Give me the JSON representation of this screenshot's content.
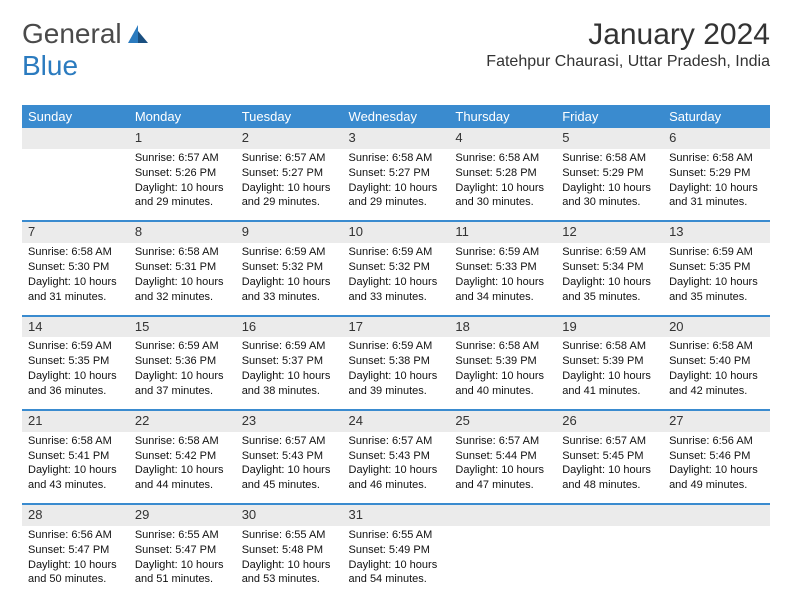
{
  "logo": {
    "text1": "General",
    "text2": "Blue"
  },
  "title": "January 2024",
  "location": "Fatehpur Chaurasi, Uttar Pradesh, India",
  "colors": {
    "header_bg": "#3a8bcf",
    "header_text": "#ffffff",
    "daynum_bg": "#ebebeb",
    "row_border": "#3a8bcf",
    "logo_gray": "#4a4a4a",
    "logo_blue": "#2b7bbf",
    "body_text": "#111111"
  },
  "typography": {
    "title_fontsize": 30,
    "location_fontsize": 16,
    "header_fontsize": 13,
    "daynum_fontsize": 13,
    "body_fontsize": 11
  },
  "weekdays": [
    "Sunday",
    "Monday",
    "Tuesday",
    "Wednesday",
    "Thursday",
    "Friday",
    "Saturday"
  ],
  "weeks": [
    [
      {
        "n": "",
        "sr": "",
        "ss": "",
        "dl": ""
      },
      {
        "n": "1",
        "sr": "6:57 AM",
        "ss": "5:26 PM",
        "dl": "10 hours and 29 minutes."
      },
      {
        "n": "2",
        "sr": "6:57 AM",
        "ss": "5:27 PM",
        "dl": "10 hours and 29 minutes."
      },
      {
        "n": "3",
        "sr": "6:58 AM",
        "ss": "5:27 PM",
        "dl": "10 hours and 29 minutes."
      },
      {
        "n": "4",
        "sr": "6:58 AM",
        "ss": "5:28 PM",
        "dl": "10 hours and 30 minutes."
      },
      {
        "n": "5",
        "sr": "6:58 AM",
        "ss": "5:29 PM",
        "dl": "10 hours and 30 minutes."
      },
      {
        "n": "6",
        "sr": "6:58 AM",
        "ss": "5:29 PM",
        "dl": "10 hours and 31 minutes."
      }
    ],
    [
      {
        "n": "7",
        "sr": "6:58 AM",
        "ss": "5:30 PM",
        "dl": "10 hours and 31 minutes."
      },
      {
        "n": "8",
        "sr": "6:58 AM",
        "ss": "5:31 PM",
        "dl": "10 hours and 32 minutes."
      },
      {
        "n": "9",
        "sr": "6:59 AM",
        "ss": "5:32 PM",
        "dl": "10 hours and 33 minutes."
      },
      {
        "n": "10",
        "sr": "6:59 AM",
        "ss": "5:32 PM",
        "dl": "10 hours and 33 minutes."
      },
      {
        "n": "11",
        "sr": "6:59 AM",
        "ss": "5:33 PM",
        "dl": "10 hours and 34 minutes."
      },
      {
        "n": "12",
        "sr": "6:59 AM",
        "ss": "5:34 PM",
        "dl": "10 hours and 35 minutes."
      },
      {
        "n": "13",
        "sr": "6:59 AM",
        "ss": "5:35 PM",
        "dl": "10 hours and 35 minutes."
      }
    ],
    [
      {
        "n": "14",
        "sr": "6:59 AM",
        "ss": "5:35 PM",
        "dl": "10 hours and 36 minutes."
      },
      {
        "n": "15",
        "sr": "6:59 AM",
        "ss": "5:36 PM",
        "dl": "10 hours and 37 minutes."
      },
      {
        "n": "16",
        "sr": "6:59 AM",
        "ss": "5:37 PM",
        "dl": "10 hours and 38 minutes."
      },
      {
        "n": "17",
        "sr": "6:59 AM",
        "ss": "5:38 PM",
        "dl": "10 hours and 39 minutes."
      },
      {
        "n": "18",
        "sr": "6:58 AM",
        "ss": "5:39 PM",
        "dl": "10 hours and 40 minutes."
      },
      {
        "n": "19",
        "sr": "6:58 AM",
        "ss": "5:39 PM",
        "dl": "10 hours and 41 minutes."
      },
      {
        "n": "20",
        "sr": "6:58 AM",
        "ss": "5:40 PM",
        "dl": "10 hours and 42 minutes."
      }
    ],
    [
      {
        "n": "21",
        "sr": "6:58 AM",
        "ss": "5:41 PM",
        "dl": "10 hours and 43 minutes."
      },
      {
        "n": "22",
        "sr": "6:58 AM",
        "ss": "5:42 PM",
        "dl": "10 hours and 44 minutes."
      },
      {
        "n": "23",
        "sr": "6:57 AM",
        "ss": "5:43 PM",
        "dl": "10 hours and 45 minutes."
      },
      {
        "n": "24",
        "sr": "6:57 AM",
        "ss": "5:43 PM",
        "dl": "10 hours and 46 minutes."
      },
      {
        "n": "25",
        "sr": "6:57 AM",
        "ss": "5:44 PM",
        "dl": "10 hours and 47 minutes."
      },
      {
        "n": "26",
        "sr": "6:57 AM",
        "ss": "5:45 PM",
        "dl": "10 hours and 48 minutes."
      },
      {
        "n": "27",
        "sr": "6:56 AM",
        "ss": "5:46 PM",
        "dl": "10 hours and 49 minutes."
      }
    ],
    [
      {
        "n": "28",
        "sr": "6:56 AM",
        "ss": "5:47 PM",
        "dl": "10 hours and 50 minutes."
      },
      {
        "n": "29",
        "sr": "6:55 AM",
        "ss": "5:47 PM",
        "dl": "10 hours and 51 minutes."
      },
      {
        "n": "30",
        "sr": "6:55 AM",
        "ss": "5:48 PM",
        "dl": "10 hours and 53 minutes."
      },
      {
        "n": "31",
        "sr": "6:55 AM",
        "ss": "5:49 PM",
        "dl": "10 hours and 54 minutes."
      },
      {
        "n": "",
        "sr": "",
        "ss": "",
        "dl": ""
      },
      {
        "n": "",
        "sr": "",
        "ss": "",
        "dl": ""
      },
      {
        "n": "",
        "sr": "",
        "ss": "",
        "dl": ""
      }
    ]
  ],
  "labels": {
    "sunrise": "Sunrise:",
    "sunset": "Sunset:",
    "daylight": "Daylight:"
  }
}
